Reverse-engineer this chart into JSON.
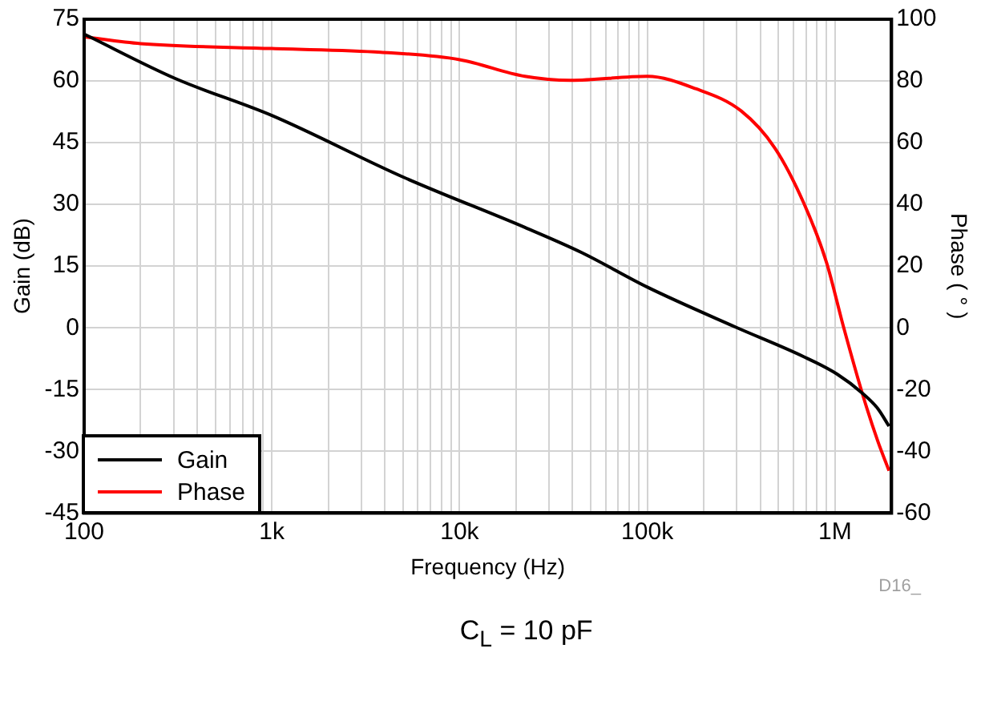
{
  "chart_data": {
    "type": "line",
    "xlabel": "Frequency (Hz)",
    "ylabel": "Gain (dB)",
    "y2label": "Phase ( ° )",
    "xlim": [
      100,
      2000000
    ],
    "xticks": [
      {
        "value": 100,
        "label": "100"
      },
      {
        "value": 200,
        "label": null
      },
      {
        "value": 300,
        "label": null
      },
      {
        "value": 400,
        "label": null
      },
      {
        "value": 500,
        "label": null
      },
      {
        "value": 600,
        "label": null
      },
      {
        "value": 700,
        "label": null
      },
      {
        "value": 800,
        "label": null
      },
      {
        "value": 900,
        "label": null
      },
      {
        "value": 1000,
        "label": "1k"
      },
      {
        "value": 2000,
        "label": null
      },
      {
        "value": 3000,
        "label": null
      },
      {
        "value": 4000,
        "label": null
      },
      {
        "value": 5000,
        "label": null
      },
      {
        "value": 6000,
        "label": null
      },
      {
        "value": 7000,
        "label": null
      },
      {
        "value": 8000,
        "label": null
      },
      {
        "value": 9000,
        "label": null
      },
      {
        "value": 10000,
        "label": "10k"
      },
      {
        "value": 20000,
        "label": null
      },
      {
        "value": 30000,
        "label": null
      },
      {
        "value": 40000,
        "label": null
      },
      {
        "value": 50000,
        "label": null
      },
      {
        "value": 60000,
        "label": null
      },
      {
        "value": 70000,
        "label": null
      },
      {
        "value": 80000,
        "label": null
      },
      {
        "value": 90000,
        "label": null
      },
      {
        "value": 100000,
        "label": "100k"
      },
      {
        "value": 200000,
        "label": null
      },
      {
        "value": 300000,
        "label": null
      },
      {
        "value": 400000,
        "label": null
      },
      {
        "value": 500000,
        "label": null
      },
      {
        "value": 600000,
        "label": null
      },
      {
        "value": 700000,
        "label": null
      },
      {
        "value": 800000,
        "label": null
      },
      {
        "value": 900000,
        "label": null
      },
      {
        "value": 1000000,
        "label": "1M"
      },
      {
        "value": 2000000,
        "label": null
      }
    ],
    "ylim": [
      -45,
      75
    ],
    "yticks": [
      -45,
      -30,
      -15,
      0,
      15,
      30,
      45,
      60,
      75
    ],
    "y2lim": [
      -60,
      100
    ],
    "y2ticks": [
      -60,
      -40,
      -20,
      0,
      20,
      40,
      60,
      80,
      100
    ],
    "log": "x",
    "grid": true,
    "legend": "bottom left",
    "marker": "none",
    "line_style": "solid",
    "series": [
      {
        "name": "Gain",
        "color": "#000000",
        "x": [
          100,
          306,
          1000,
          5030,
          22300,
          44700,
          100000,
          295000,
          681000,
          1030000,
          1410000,
          1690000,
          1940000
        ],
        "values": [
          71.4,
          60.6,
          51.6,
          36.6,
          24.4,
          18.3,
          9.9,
          0.2,
          -7,
          -11.3,
          -16,
          -19.6,
          -23.9
        ]
      },
      {
        "name": "Phase",
        "color": "#ff0000",
        "axis": "y2",
        "x": [
          100,
          200,
          1000,
          3800,
          10000,
          22300,
          39000,
          100000,
          181000,
          316000,
          479000,
          681000,
          901000,
          1110000,
          1410000,
          1690000,
          1940000
        ],
        "values": [
          94.3,
          92.1,
          90.5,
          89.3,
          86.9,
          81.5,
          80.2,
          81.5,
          77.5,
          70.3,
          58.2,
          40.5,
          21.2,
          0.3,
          -22,
          -36.7,
          -46.3
        ]
      }
    ],
    "annotations": [
      "D16_",
      "C$_{L}$ = 10 pF"
    ]
  }
}
